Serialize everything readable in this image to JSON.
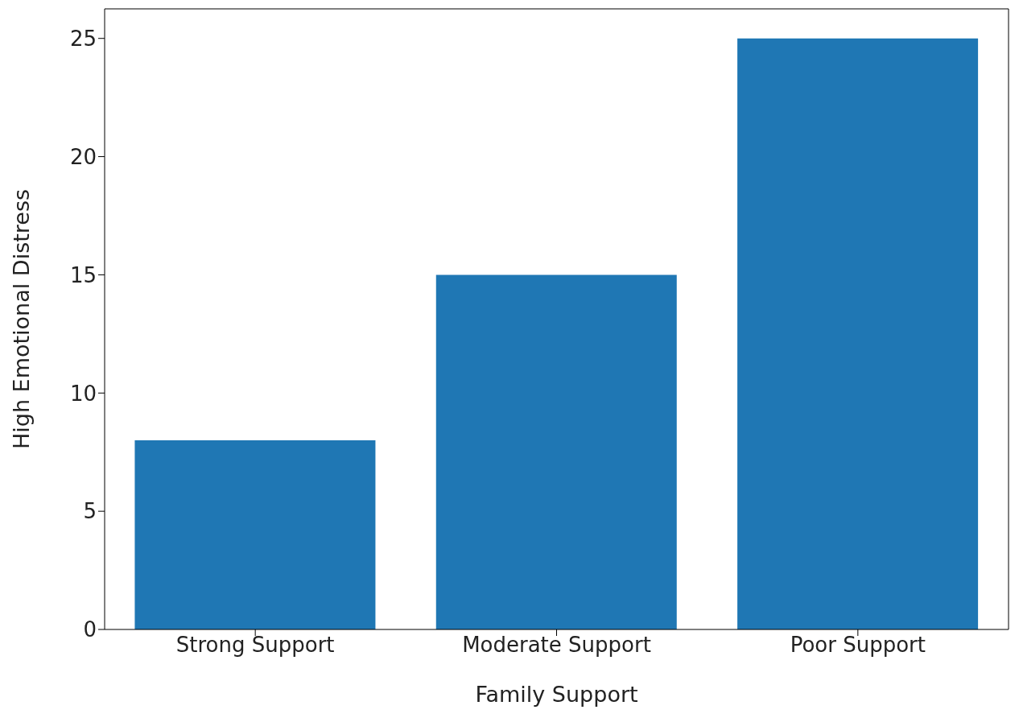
{
  "chart_data": {
    "type": "bar",
    "xlabel": "Family Support",
    "ylabel": "High Emotional Distress",
    "categories": [
      "Strong Support",
      "Moderate Support",
      "Poor Support"
    ],
    "values": [
      8,
      15,
      25
    ],
    "color": "#1f77b4",
    "ylim": [
      0,
      26.25
    ],
    "yticks": [
      0,
      5,
      10,
      15,
      20,
      25
    ],
    "grid": false,
    "legend": false
  }
}
